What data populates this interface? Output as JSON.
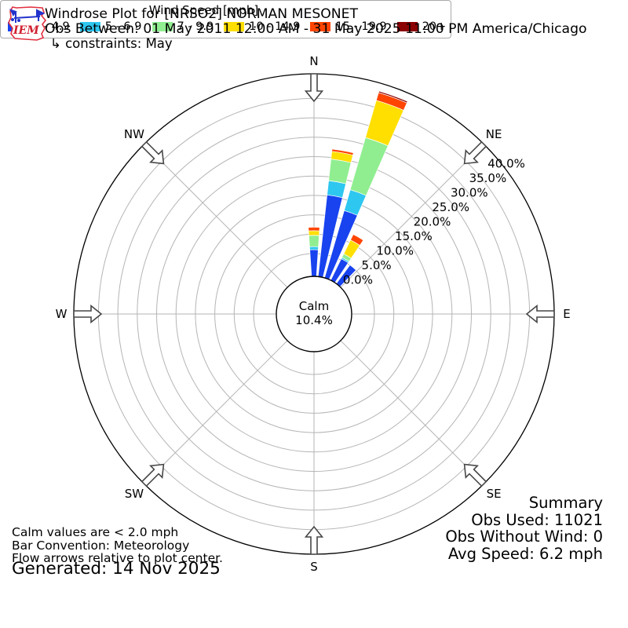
{
  "header": {
    "logo_text": "IEM",
    "title": "Windrose Plot for [NRSO2] NORMAN MESONET",
    "subtitle": "Obs Between: 01 May 2011 12:00 AM - 31 May 2025 11:00 PM America/Chicago",
    "constraints": "↳ constraints: May"
  },
  "chart_data": {
    "type": "windrose",
    "units": "mph",
    "directions_deg": [
      0,
      10,
      20,
      30,
      40
    ],
    "series": [
      {
        "name": "2 - 4.9",
        "color": "#1843ef",
        "values": [
          1.0,
          15.3,
          12.2,
          0.3,
          0.1
        ]
      },
      {
        "name": "5 - 6.9",
        "color": "#2ec7f0",
        "values": [
          0.8,
          3.7,
          5.6,
          0.4,
          0.1
        ]
      },
      {
        "name": "7 - 9.9",
        "color": "#90ee90",
        "values": [
          2.9,
          5.6,
          14.0,
          1.0,
          0.15
        ]
      },
      {
        "name": "10 - 14.9",
        "color": "#ffdf00",
        "values": [
          1.2,
          2.0,
          10.0,
          4.0,
          0.1
        ]
      },
      {
        "name": "15 - 19.9",
        "color": "#ff4500",
        "values": [
          0.9,
          0.6,
          2.1,
          1.6,
          0.05
        ]
      },
      {
        "name": "20+",
        "color": "#8b0000",
        "values": [
          0.0,
          0.1,
          0.4,
          0.0,
          0.0
        ]
      }
    ],
    "direction_totals_pct": [
      6.8,
      27.3,
      44.3,
      7.3,
      0.5
    ],
    "calm": {
      "line1": "Calm",
      "line2": "10.4%",
      "percent": 10.4
    },
    "radial_ticks": {
      "labels": [
        "0.0%",
        "5.0%",
        "10.0%",
        "15.0%",
        "20.0%",
        "25.0%",
        "30.0%",
        "35.0%",
        "40.0%"
      ],
      "percents": [
        0,
        5,
        10,
        15,
        20,
        25,
        30,
        35,
        40
      ]
    },
    "compass_points": [
      {
        "label": "N",
        "deg": 0
      },
      {
        "label": "NE",
        "deg": 45
      },
      {
        "label": "E",
        "deg": 90
      },
      {
        "label": "SE",
        "deg": 135
      },
      {
        "label": "S",
        "deg": 180
      },
      {
        "label": "SW",
        "deg": 225
      },
      {
        "label": "W",
        "deg": 270
      },
      {
        "label": "NW",
        "deg": 315
      }
    ],
    "layout_hints": {
      "grid": true,
      "sector_width_deg": 7.5,
      "legend_position": "bottom",
      "tick_label_angle_deg": 52,
      "grid_color": "#b5b5b5",
      "outer_ring_color": "#000000"
    }
  },
  "legend": {
    "title": "Wind Speed [mph]"
  },
  "summary": {
    "heading": "Summary",
    "obs_used": "Obs Used: 11021",
    "obs_without_wind": "Obs Without Wind: 0",
    "avg_speed": "Avg Speed: 6.2 mph"
  },
  "notes": {
    "calm_note": "Calm values are < 2.0 mph",
    "bar_convention": "Bar Convention: Meteorology",
    "flow_arrows": "Flow arrows relative to plot center.",
    "generated": "Generated: 14 Nov 2025"
  }
}
